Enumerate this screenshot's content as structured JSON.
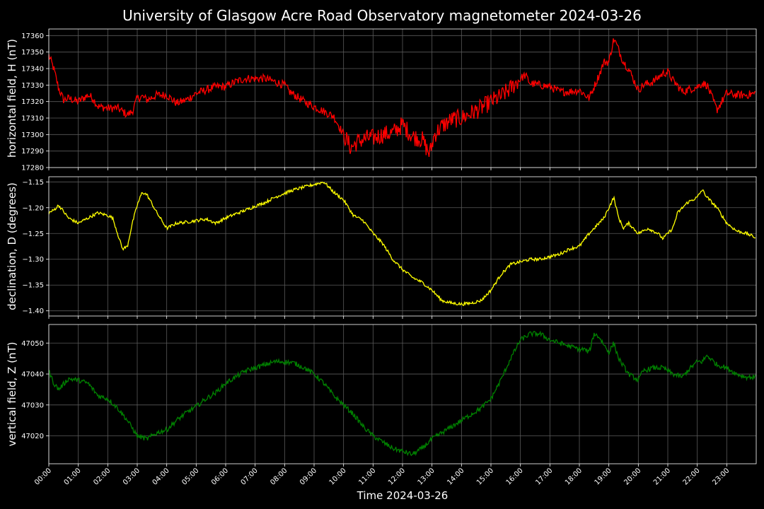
{
  "chart_data": {
    "type": "line",
    "title": "University of Glasgow Acre Road Observatory magnetometer 2024-03-26",
    "xlabel": "Time 2024-03-26",
    "x_ticks": [
      "00:00",
      "01:00",
      "02:00",
      "03:00",
      "04:00",
      "05:00",
      "06:00",
      "07:00",
      "08:00",
      "09:00",
      "10:00",
      "11:00",
      "12:00",
      "13:00",
      "14:00",
      "15:00",
      "16:00",
      "17:00",
      "18:00",
      "19:00",
      "20:00",
      "21:00",
      "22:00",
      "23:00"
    ],
    "grid": true,
    "panels": [
      {
        "ylabel": "horizontal field, H (nT)",
        "color": "#ff0000",
        "ylim": [
          17280,
          17364
        ],
        "yticks": [
          17280,
          17290,
          17300,
          17310,
          17320,
          17330,
          17340,
          17350,
          17360
        ],
        "noise": 2.5,
        "series": {
          "name": "H",
          "x": [
            "00:00",
            "00:10",
            "00:20",
            "00:30",
            "00:40",
            "01:00",
            "01:20",
            "01:30",
            "01:40",
            "02:00",
            "02:20",
            "02:30",
            "02:40",
            "02:50",
            "03:00",
            "03:10",
            "03:20",
            "03:40",
            "04:00",
            "04:20",
            "04:40",
            "05:00",
            "05:20",
            "05:40",
            "06:00",
            "06:20",
            "06:40",
            "07:00",
            "07:20",
            "07:40",
            "08:00",
            "08:10",
            "08:20",
            "08:40",
            "09:00",
            "09:20",
            "09:40",
            "10:00",
            "10:15",
            "10:30",
            "10:50",
            "11:00",
            "11:20",
            "11:40",
            "12:00",
            "12:20",
            "12:40",
            "12:55",
            "13:05",
            "13:20",
            "13:40",
            "14:00",
            "14:20",
            "14:40",
            "15:00",
            "15:20",
            "15:40",
            "16:00",
            "16:10",
            "16:20",
            "16:40",
            "17:00",
            "17:20",
            "17:40",
            "18:00",
            "18:20",
            "18:40",
            "18:50",
            "19:00",
            "19:10",
            "19:15",
            "19:30",
            "19:40",
            "20:00",
            "20:10",
            "20:30",
            "20:50",
            "21:00",
            "21:10",
            "21:30",
            "21:40",
            "22:00",
            "22:10",
            "22:20",
            "22:40",
            "23:00",
            "23:20",
            "23:40",
            "23:59"
          ],
          "values": [
            17348,
            17340,
            17328,
            17321,
            17322,
            17320,
            17324,
            17322,
            17317,
            17316,
            17316,
            17314,
            17312,
            17314,
            17322,
            17323,
            17321,
            17324,
            17324,
            17319,
            17321,
            17325,
            17327,
            17329,
            17329,
            17332,
            17334,
            17334,
            17334,
            17332,
            17330,
            17326,
            17324,
            17320,
            17317,
            17314,
            17311,
            17300,
            17292,
            17296,
            17298,
            17298,
            17300,
            17301,
            17306,
            17299,
            17297,
            17288,
            17300,
            17305,
            17309,
            17310,
            17313,
            17316,
            17320,
            17323,
            17328,
            17334,
            17336,
            17331,
            17330,
            17329,
            17326,
            17326,
            17327,
            17322,
            17336,
            17344,
            17344,
            17358,
            17355,
            17344,
            17340,
            17327,
            17330,
            17332,
            17337,
            17338,
            17333,
            17326,
            17327,
            17329,
            17331,
            17330,
            17315,
            17325,
            17324,
            17324,
            17325
          ]
        }
      },
      {
        "ylabel": "declination, D (degrees)",
        "color": "#ffff00",
        "ylim": [
          -1.41,
          -1.14
        ],
        "yticks": [
          -1.4,
          -1.35,
          -1.3,
          -1.25,
          -1.2,
          -1.15
        ],
        "ytick_labels": [
          "−1.40",
          "−1.35",
          "−1.30",
          "−1.25",
          "−1.20",
          "−1.15"
        ],
        "noise": 0.003,
        "series": {
          "name": "D",
          "x": [
            "00:00",
            "00:10",
            "00:20",
            "00:40",
            "01:00",
            "01:20",
            "01:40",
            "02:00",
            "02:10",
            "02:20",
            "02:30",
            "02:40",
            "02:50",
            "03:00",
            "03:10",
            "03:20",
            "03:40",
            "04:00",
            "04:20",
            "04:40",
            "05:00",
            "05:20",
            "05:40",
            "06:00",
            "06:20",
            "06:40",
            "07:00",
            "07:20",
            "07:40",
            "08:00",
            "08:20",
            "08:40",
            "09:00",
            "09:20",
            "09:40",
            "10:00",
            "10:20",
            "10:40",
            "11:00",
            "11:20",
            "11:40",
            "12:00",
            "12:20",
            "12:40",
            "13:00",
            "13:20",
            "13:40",
            "14:00",
            "14:20",
            "14:40",
            "15:00",
            "15:20",
            "15:40",
            "16:00",
            "16:20",
            "16:40",
            "17:00",
            "17:20",
            "17:40",
            "18:00",
            "18:20",
            "18:40",
            "18:50",
            "19:00",
            "19:10",
            "19:20",
            "19:30",
            "19:40",
            "20:00",
            "20:20",
            "20:40",
            "20:50",
            "21:00",
            "21:10",
            "21:20",
            "21:40",
            "22:00",
            "22:10",
            "22:20",
            "22:40",
            "23:00",
            "23:20",
            "23:40",
            "23:59"
          ],
          "values": [
            -1.21,
            -1.205,
            -1.195,
            -1.22,
            -1.23,
            -1.22,
            -1.21,
            -1.215,
            -1.22,
            -1.25,
            -1.28,
            -1.275,
            -1.23,
            -1.195,
            -1.17,
            -1.175,
            -1.21,
            -1.24,
            -1.23,
            -1.228,
            -1.225,
            -1.222,
            -1.23,
            -1.22,
            -1.212,
            -1.205,
            -1.197,
            -1.19,
            -1.18,
            -1.172,
            -1.165,
            -1.16,
            -1.155,
            -1.15,
            -1.17,
            -1.185,
            -1.215,
            -1.225,
            -1.25,
            -1.27,
            -1.3,
            -1.32,
            -1.335,
            -1.345,
            -1.36,
            -1.38,
            -1.385,
            -1.387,
            -1.385,
            -1.38,
            -1.36,
            -1.33,
            -1.31,
            -1.305,
            -1.3,
            -1.3,
            -1.295,
            -1.29,
            -1.28,
            -1.275,
            -1.25,
            -1.23,
            -1.22,
            -1.2,
            -1.18,
            -1.22,
            -1.24,
            -1.23,
            -1.25,
            -1.24,
            -1.25,
            -1.26,
            -1.25,
            -1.24,
            -1.21,
            -1.19,
            -1.18,
            -1.165,
            -1.18,
            -1.2,
            -1.23,
            -1.245,
            -1.25,
            -1.258
          ]
        }
      },
      {
        "ylabel": "vertical field, Z (nT)",
        "color": "#008000",
        "ylim": [
          47011,
          47056
        ],
        "yticks": [
          47020,
          47030,
          47040,
          47050
        ],
        "noise": 0.8,
        "series": {
          "name": "Z",
          "x": [
            "00:00",
            "00:10",
            "00:20",
            "00:40",
            "01:00",
            "01:20",
            "01:40",
            "02:00",
            "02:20",
            "02:40",
            "03:00",
            "03:20",
            "03:40",
            "04:00",
            "04:20",
            "04:40",
            "05:00",
            "05:20",
            "05:40",
            "06:00",
            "06:20",
            "06:40",
            "07:00",
            "07:20",
            "07:40",
            "08:00",
            "08:20",
            "08:40",
            "09:00",
            "09:20",
            "09:40",
            "10:00",
            "10:20",
            "10:40",
            "11:00",
            "11:20",
            "11:40",
            "12:00",
            "12:20",
            "12:40",
            "13:00",
            "13:20",
            "13:40",
            "14:00",
            "14:20",
            "14:40",
            "15:00",
            "15:20",
            "15:40",
            "16:00",
            "16:20",
            "16:40",
            "17:00",
            "17:20",
            "17:40",
            "18:00",
            "18:10",
            "18:20",
            "18:30",
            "18:40",
            "19:00",
            "19:10",
            "19:20",
            "19:40",
            "19:50",
            "20:00",
            "20:10",
            "20:30",
            "20:50",
            "21:00",
            "21:10",
            "21:30",
            "21:40",
            "22:00",
            "22:10",
            "22:20",
            "22:40",
            "23:00",
            "23:20",
            "23:40",
            "23:59"
          ],
          "values": [
            47041,
            47037,
            47035,
            47038.5,
            47038,
            47037,
            47033,
            47032,
            47029,
            47025,
            47020,
            47019,
            47021,
            47022,
            47025,
            47027.5,
            47029.5,
            47032,
            47034,
            47037,
            47039,
            47041,
            47042,
            47043,
            47044,
            47044,
            47043.5,
            47042,
            47040,
            47037,
            47033,
            47030,
            47027,
            47023,
            47020,
            47018,
            47016,
            47015,
            47014,
            47016,
            47019,
            47021,
            47023,
            47025,
            47027,
            47029,
            47032,
            47038,
            47045,
            47051,
            47053,
            47053,
            47051,
            47050,
            47049,
            47048,
            47048,
            47047,
            47053,
            47052,
            47047,
            47050,
            47045,
            47040,
            47039,
            47038,
            47041,
            47042,
            47042,
            47041,
            47040,
            47039,
            47041,
            47044,
            47044,
            47046,
            47043,
            47042,
            47040,
            47039,
            47039
          ]
        }
      }
    ]
  }
}
